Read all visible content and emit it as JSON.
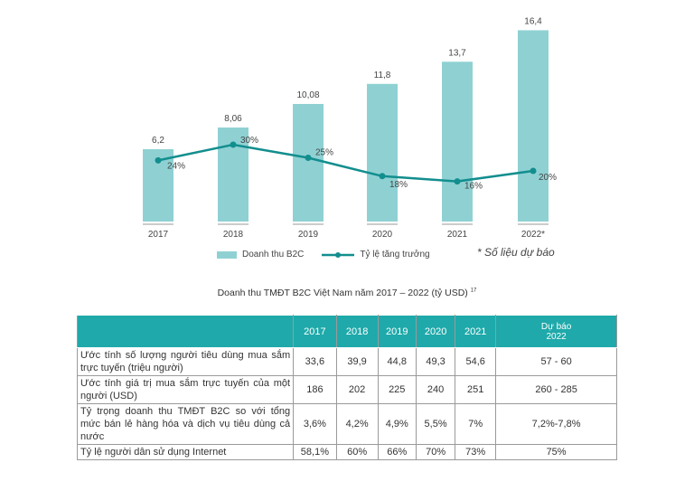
{
  "chart_data": {
    "type": "bar+line",
    "categories": [
      "2017",
      "2018",
      "2019",
      "2020",
      "2021",
      "2022*"
    ],
    "series": [
      {
        "name": "Doanh thu B2C",
        "type": "bar",
        "values": [
          6.2,
          8.06,
          10.08,
          11.8,
          13.7,
          16.4
        ],
        "labels": [
          "6,2",
          "8,06",
          "10,08",
          "11,8",
          "13,7",
          "16,4"
        ],
        "color": "#8fd1d3"
      },
      {
        "name": "Tỷ lệ tăng trưởng",
        "type": "line",
        "values": [
          24,
          30,
          25,
          18,
          16,
          20
        ],
        "labels": [
          "24%",
          "30%",
          "25%",
          "18%",
          "16%",
          "20%"
        ],
        "color": "#138e8e"
      }
    ],
    "note": "* Số liệu dự báo",
    "title": "Doanh thu TMĐT B2C Việt Nam năm 2017 – 2022 (tỷ USD)",
    "footnote_ref": "17"
  },
  "table": {
    "headers": [
      "",
      "2017",
      "2018",
      "2019",
      "2020",
      "2021",
      "Dự báo 2022"
    ],
    "rows": [
      [
        "Ước tính số lượng người tiêu dùng mua sắm trực tuyến (triệu người)",
        "33,6",
        "39,9",
        "44,8",
        "49,3",
        "54,6",
        "57 - 60"
      ],
      [
        "Ước tính giá trị mua sắm trực tuyến của một người (USD)",
        "186",
        "202",
        "225",
        "240",
        "251",
        "260 - 285"
      ],
      [
        "Tỷ trọng doanh thu TMĐT B2C so với tổng mức bán lẻ hàng hóa và dịch vụ tiêu dùng cả nước",
        "3,6%",
        "4,2%",
        "4,9%",
        "5,5%",
        "7%",
        "7,2%-7,8%"
      ],
      [
        "Tỷ lệ người dân sử dụng Internet",
        "58,1%",
        "60%",
        "66%",
        "70%",
        "73%",
        "75%"
      ]
    ]
  }
}
